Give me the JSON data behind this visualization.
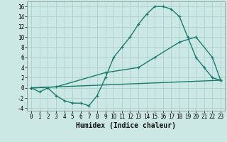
{
  "xlabel": "Humidex (Indice chaleur)",
  "bg_color": "#cce8e4",
  "grid_color": "#aed0cc",
  "line_color": "#1a7a6e",
  "xlim": [
    -0.5,
    23.5
  ],
  "ylim": [
    -4.5,
    17
  ],
  "xticks": [
    0,
    1,
    2,
    3,
    4,
    5,
    6,
    7,
    8,
    9,
    10,
    11,
    12,
    13,
    14,
    15,
    16,
    17,
    18,
    19,
    20,
    21,
    22,
    23
  ],
  "yticks": [
    -4,
    -2,
    0,
    2,
    4,
    6,
    8,
    10,
    12,
    14,
    16
  ],
  "line1_x": [
    0,
    1,
    2,
    3,
    4,
    5,
    6,
    7,
    8,
    9,
    10,
    11,
    12,
    13,
    14,
    15,
    16,
    17,
    18,
    19,
    20,
    21,
    22,
    23
  ],
  "line1_y": [
    0,
    -0.8,
    0,
    -1.5,
    -2.5,
    -3,
    -3,
    -3.5,
    -1.5,
    2,
    6,
    8,
    10,
    12.5,
    14.5,
    16,
    16,
    15.5,
    14,
    10,
    6,
    4,
    2,
    1.5
  ],
  "line2_x": [
    0,
    3,
    9,
    13,
    15,
    18,
    20,
    22,
    23
  ],
  "line2_y": [
    0,
    0.2,
    3,
    4,
    6,
    9,
    10,
    6,
    1.5
  ],
  "line3_x": [
    0,
    23
  ],
  "line3_y": [
    0,
    1.5
  ],
  "line_width": 1.0,
  "font_size": 7,
  "xlabel_fontsize": 7,
  "tick_fontsize": 5.5
}
